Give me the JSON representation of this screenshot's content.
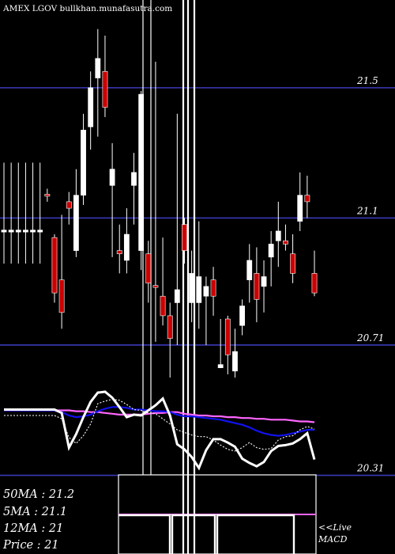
{
  "chart_data": {
    "type": "candlestick",
    "title": "AMEX  LGOV bullkhan.munafasutra.com",
    "price_axis": {
      "ylim": [
        20.27,
        21.75
      ],
      "levels": [
        {
          "value": 21.5,
          "label": "21.5"
        },
        {
          "value": 21.1,
          "label": "21.1"
        },
        {
          "value": 20.71,
          "label": "20.71"
        },
        {
          "value": 20.31,
          "label": "20.31"
        }
      ]
    },
    "candles": [
      {
        "open": 21.06,
        "close": 21.06,
        "high": 21.27,
        "low": 20.96,
        "color": "white"
      },
      {
        "open": 21.06,
        "close": 21.06,
        "high": 21.27,
        "low": 20.96,
        "color": "white"
      },
      {
        "open": 21.06,
        "close": 21.06,
        "high": 21.27,
        "low": 20.96,
        "color": "white"
      },
      {
        "open": 21.06,
        "close": 21.06,
        "high": 21.27,
        "low": 20.96,
        "color": "white"
      },
      {
        "open": 21.06,
        "close": 21.06,
        "high": 21.27,
        "low": 20.96,
        "color": "white"
      },
      {
        "open": 21.06,
        "close": 21.06,
        "high": 21.27,
        "low": 20.96,
        "color": "white"
      },
      {
        "open": 21.17,
        "close": 21.17,
        "high": 21.19,
        "low": 21.15,
        "color": "red"
      },
      {
        "open": 21.04,
        "close": 20.87,
        "high": 21.05,
        "low": 20.84,
        "color": "red"
      },
      {
        "open": 20.91,
        "close": 20.81,
        "high": 21.11,
        "low": 20.76,
        "color": "red"
      },
      {
        "open": 21.15,
        "close": 21.13,
        "high": 21.18,
        "low": 21.08,
        "color": "red"
      },
      {
        "open": 21.0,
        "close": 21.17,
        "high": 21.25,
        "low": 20.98,
        "color": "white"
      },
      {
        "open": 21.17,
        "close": 21.37,
        "high": 21.42,
        "low": 21.14,
        "color": "white"
      },
      {
        "open": 21.38,
        "close": 21.5,
        "high": 21.55,
        "low": 21.31,
        "color": "white"
      },
      {
        "open": 21.53,
        "close": 21.59,
        "high": 21.68,
        "low": 21.35,
        "color": "white"
      },
      {
        "open": 21.55,
        "close": 21.44,
        "high": 21.66,
        "low": 21.41,
        "color": "red"
      },
      {
        "open": 21.2,
        "close": 21.25,
        "high": 21.33,
        "low": 20.98,
        "color": "white"
      },
      {
        "open": 21.0,
        "close": 20.99,
        "high": 21.08,
        "low": 20.93,
        "color": "red"
      },
      {
        "open": 20.97,
        "close": 21.05,
        "high": 21.13,
        "low": 20.93,
        "color": "white"
      },
      {
        "open": 21.2,
        "close": 21.24,
        "high": 21.3,
        "low": 21.08,
        "color": "white"
      },
      {
        "open": 21.0,
        "close": 21.48,
        "high": 21.49,
        "low": 20.94,
        "color": "white"
      },
      {
        "open": 20.99,
        "close": 20.9,
        "high": 21.03,
        "low": 20.84,
        "color": "red"
      },
      {
        "open": 20.89,
        "close": 20.89,
        "high": 21.58,
        "low": 20.72,
        "color": "red"
      },
      {
        "open": 20.86,
        "close": 20.8,
        "high": 21.04,
        "low": 20.77,
        "color": "red"
      },
      {
        "open": 20.8,
        "close": 20.73,
        "high": 20.84,
        "low": 20.61,
        "color": "red"
      },
      {
        "open": 20.84,
        "close": 20.88,
        "high": 21.42,
        "low": 20.71,
        "color": "white"
      },
      {
        "open": 21.0,
        "close": 21.08,
        "high": 21.1,
        "low": 20.96,
        "color": "red"
      },
      {
        "open": 20.84,
        "close": 20.93,
        "high": 21.0,
        "low": 20.78,
        "color": "white"
      },
      {
        "open": 20.84,
        "close": 20.92,
        "high": 21.09,
        "low": 20.76,
        "color": "white"
      },
      {
        "open": 20.86,
        "close": 20.89,
        "high": 20.92,
        "low": 20.71,
        "color": "white"
      },
      {
        "open": 20.91,
        "close": 20.86,
        "high": 20.95,
        "low": 20.8,
        "color": "red"
      },
      {
        "open": 20.64,
        "close": 20.65,
        "high": 20.79,
        "low": 20.64,
        "color": "white"
      },
      {
        "open": 20.79,
        "close": 20.68,
        "high": 20.8,
        "low": 20.62,
        "color": "red"
      },
      {
        "open": 20.63,
        "close": 20.69,
        "high": 20.76,
        "low": 20.61,
        "color": "white"
      },
      {
        "open": 20.77,
        "close": 20.83,
        "high": 20.85,
        "low": 20.74,
        "color": "white"
      },
      {
        "open": 20.91,
        "close": 20.97,
        "high": 21.02,
        "low": 20.84,
        "color": "white"
      },
      {
        "open": 20.93,
        "close": 20.85,
        "high": 21.01,
        "low": 20.78,
        "color": "red"
      },
      {
        "open": 20.89,
        "close": 20.92,
        "high": 20.97,
        "low": 20.81,
        "color": "white"
      },
      {
        "open": 20.98,
        "close": 21.02,
        "high": 21.06,
        "low": 20.89,
        "color": "white"
      },
      {
        "open": 21.03,
        "close": 21.06,
        "high": 21.15,
        "low": 20.95,
        "color": "white"
      },
      {
        "open": 21.03,
        "close": 21.02,
        "high": 21.08,
        "low": 21.0,
        "color": "red"
      },
      {
        "open": 20.99,
        "close": 20.93,
        "high": 21.05,
        "low": 20.9,
        "color": "red"
      },
      {
        "open": 21.09,
        "close": 21.17,
        "high": 21.24,
        "low": 21.06,
        "color": "white"
      },
      {
        "open": 21.17,
        "close": 21.15,
        "high": 21.23,
        "low": 21.1,
        "color": "red"
      },
      {
        "open": 20.93,
        "close": 20.87,
        "high": 21.0,
        "low": 20.86,
        "color": "red"
      }
    ],
    "indicators": {
      "series": [
        {
          "name": "50MA",
          "color": "#ff66ff",
          "values": [
            0.78,
            0.78,
            0.78,
            0.78,
            0.78,
            0.78,
            0.78,
            0.78,
            0.78,
            0.78,
            0.77,
            0.77,
            0.76,
            0.76,
            0.75,
            0.74,
            0.73,
            0.73,
            0.73,
            0.73,
            0.74,
            0.75,
            0.75,
            0.76,
            0.76,
            0.74,
            0.73,
            0.72,
            0.72,
            0.71,
            0.71,
            0.7,
            0.7,
            0.69,
            0.69,
            0.68,
            0.68,
            0.67,
            0.67,
            0.67,
            0.66,
            0.65,
            0.65,
            0.64
          ]
        },
        {
          "name": "12MA",
          "color": "#1111ee",
          "values": [
            0.78,
            0.78,
            0.78,
            0.78,
            0.78,
            0.78,
            0.78,
            0.78,
            0.76,
            0.72,
            0.7,
            0.71,
            0.73,
            0.77,
            0.8,
            0.82,
            0.82,
            0.81,
            0.79,
            0.79,
            0.78,
            0.77,
            0.77,
            0.76,
            0.73,
            0.71,
            0.71,
            0.7,
            0.69,
            0.68,
            0.67,
            0.65,
            0.63,
            0.61,
            0.58,
            0.54,
            0.51,
            0.49,
            0.48,
            0.49,
            0.51,
            0.53,
            0.55,
            0.55
          ]
        },
        {
          "name": "5MA",
          "color": "#ffffff",
          "dashed": true,
          "values": [
            0.72,
            0.72,
            0.72,
            0.72,
            0.72,
            0.72,
            0.72,
            0.72,
            0.68,
            0.46,
            0.39,
            0.48,
            0.62,
            0.86,
            0.89,
            0.91,
            0.9,
            0.85,
            0.79,
            0.78,
            0.75,
            0.74,
            0.68,
            0.62,
            0.55,
            0.52,
            0.49,
            0.47,
            0.47,
            0.43,
            0.37,
            0.32,
            0.3,
            0.34,
            0.4,
            0.34,
            0.32,
            0.33,
            0.43,
            0.47,
            0.48,
            0.55,
            0.59,
            0.56
          ]
        },
        {
          "name": "MACD",
          "color": "#ffffff",
          "thick": true,
          "values": [
            0.79,
            0.79,
            0.79,
            0.79,
            0.79,
            0.79,
            0.79,
            0.79,
            0.75,
            0.34,
            0.5,
            0.7,
            0.88,
            0.99,
            1.0,
            0.93,
            0.82,
            0.7,
            0.73,
            0.72,
            0.78,
            0.84,
            0.92,
            0.72,
            0.38,
            0.32,
            0.23,
            0.1,
            0.31,
            0.44,
            0.44,
            0.4,
            0.35,
            0.21,
            0.16,
            0.12,
            0.17,
            0.3,
            0.36,
            0.37,
            0.39,
            0.44,
            0.51,
            0.2
          ]
        }
      ]
    },
    "legend": [
      {
        "label": "50MA",
        "value": ": 21.2"
      },
      {
        "label": "5MA",
        "value": ": 21.1"
      },
      {
        "label": "12MA",
        "value": ": 21"
      },
      {
        "label": "Price",
        "value": "  : 21"
      }
    ],
    "macd_note": "<<Live\nMACD"
  }
}
